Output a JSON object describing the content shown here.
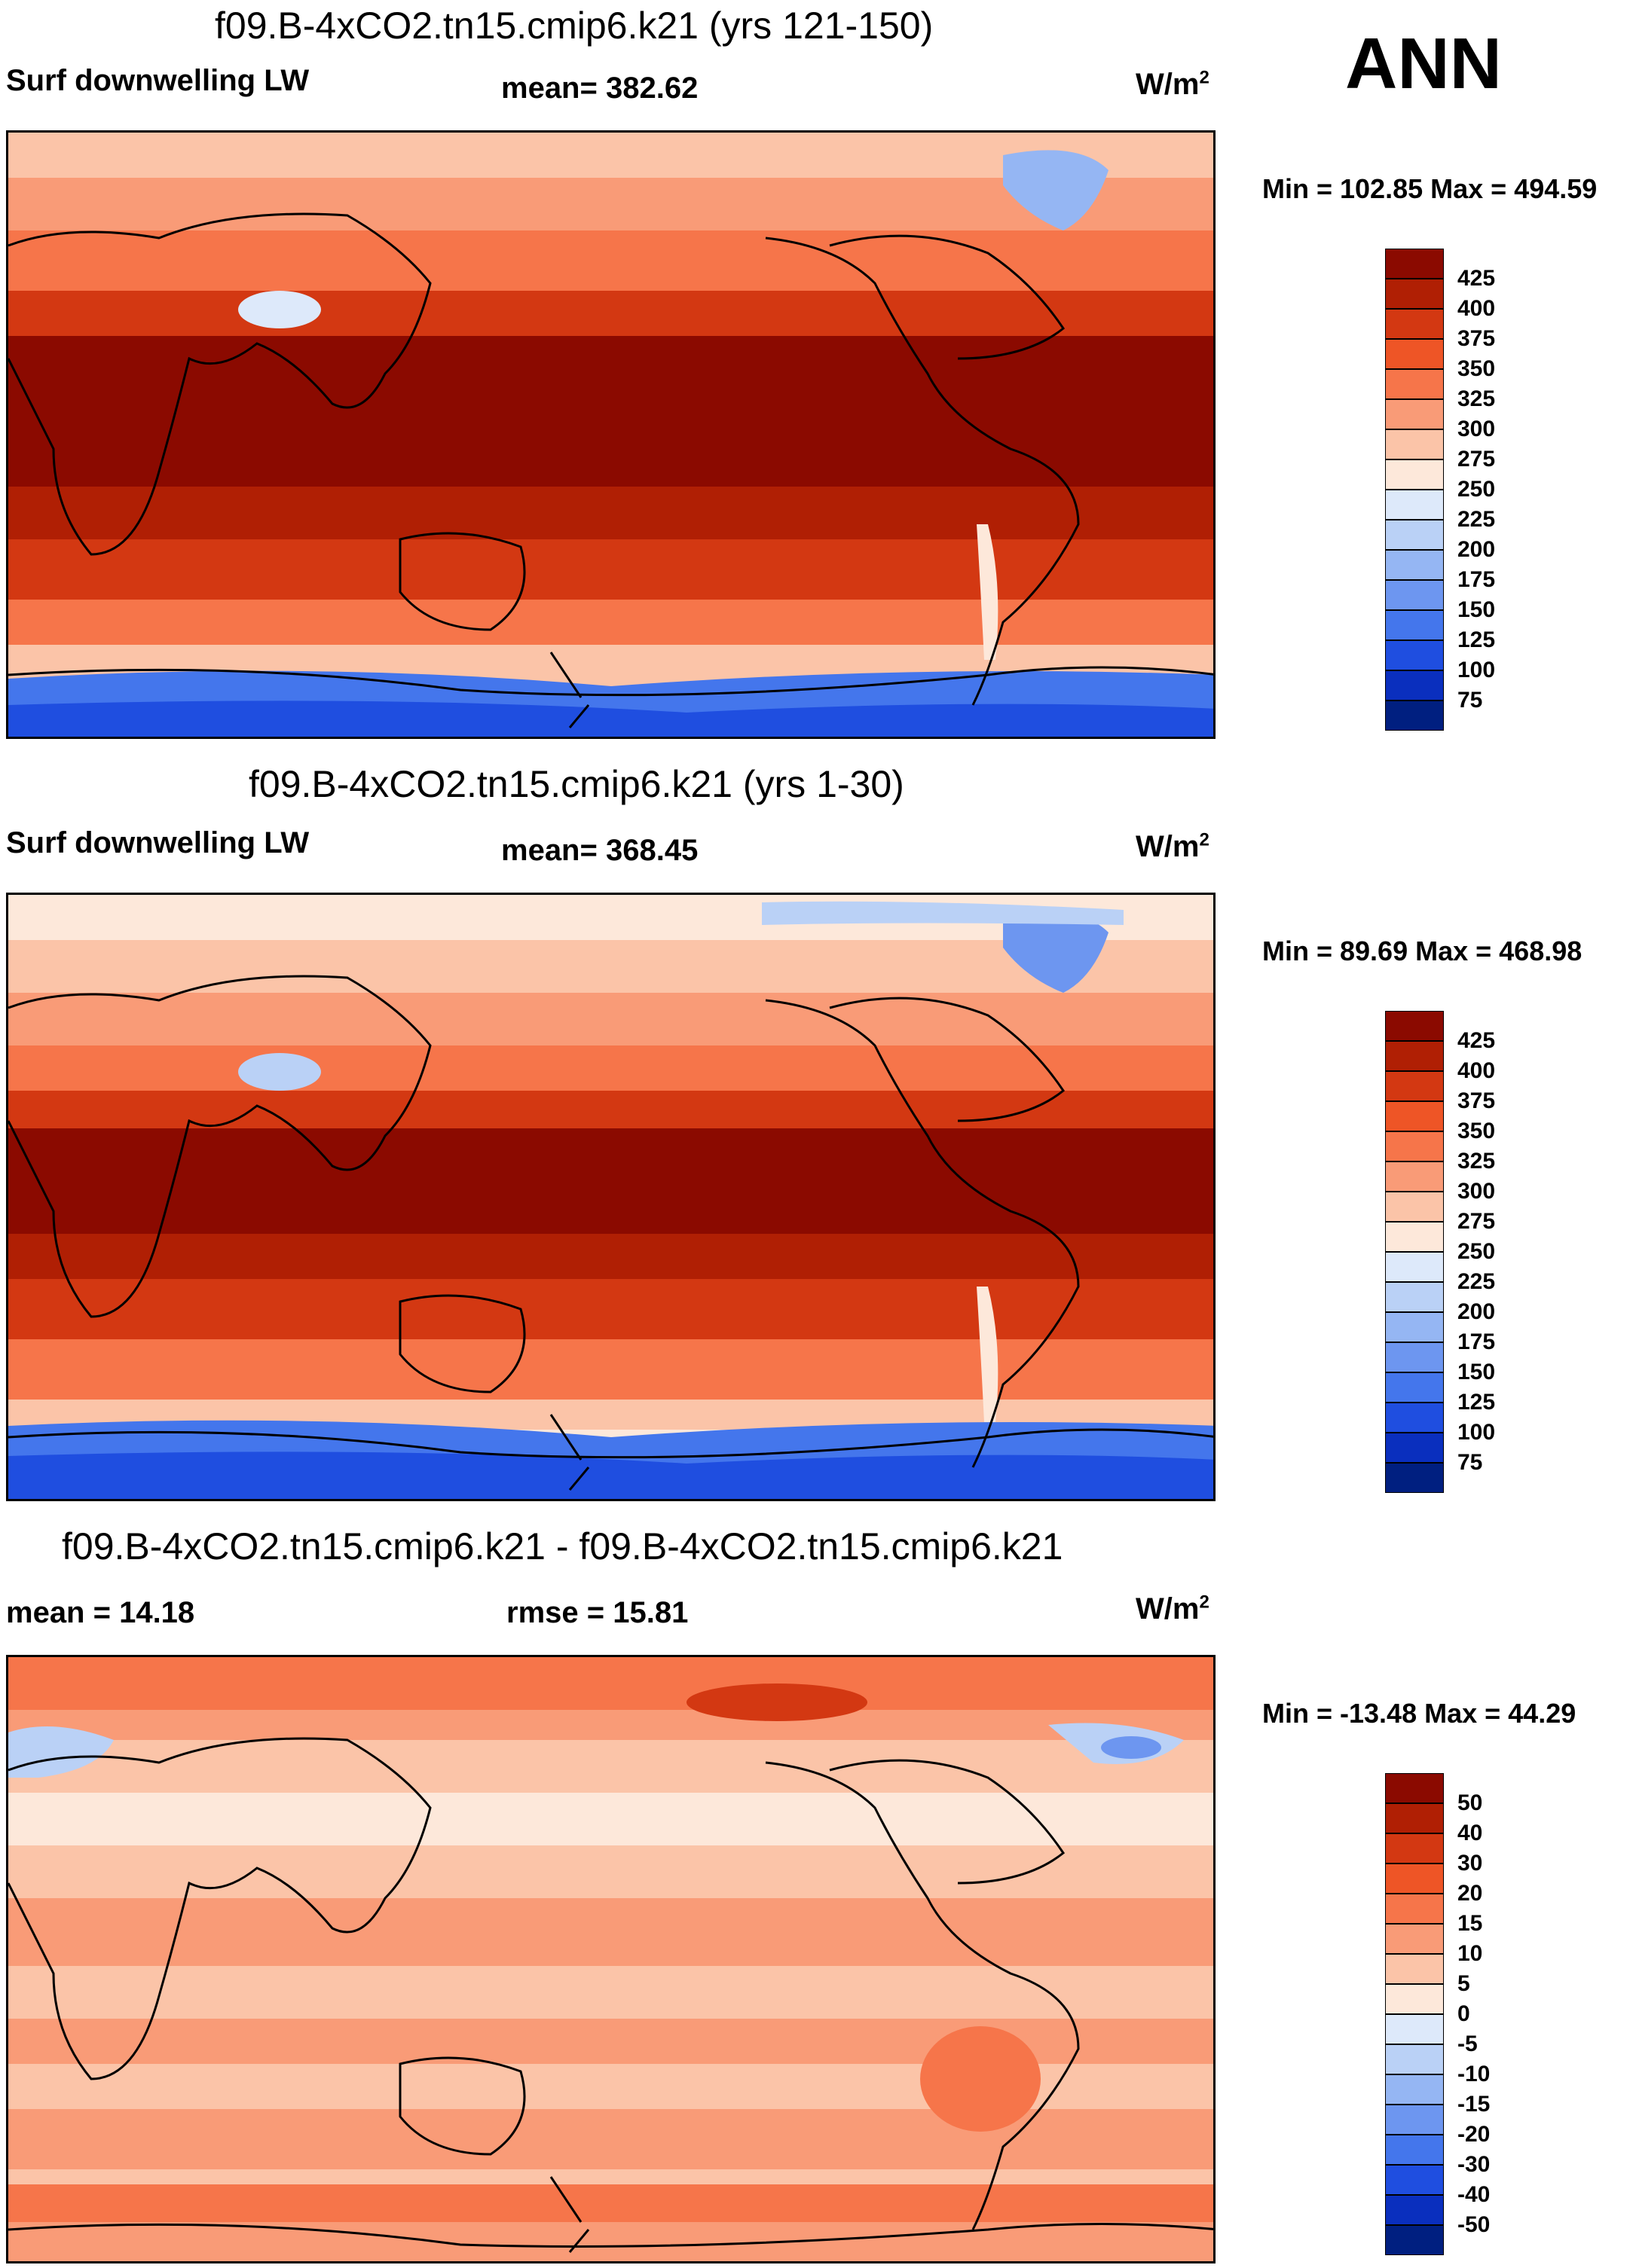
{
  "season": "ANN",
  "units": "W/m",
  "units_exp": "2",
  "panels": [
    {
      "title": "f09.B-4xCO2.tn15.cmip6.k21 (yrs 121-150)",
      "left": "Surf downwelling LW",
      "center": "mean= 382.62",
      "minmax": "Min = 102.85 Max = 494.59",
      "kind": "abs"
    },
    {
      "title": "f09.B-4xCO2.tn15.cmip6.k21 (yrs 1-30)",
      "left": "Surf downwelling LW",
      "center": "mean= 368.45",
      "minmax": "Min =  89.69 Max = 468.98",
      "kind": "abs"
    },
    {
      "title": "f09.B-4xCO2.tn15.cmip6.k21 - f09.B-4xCO2.tn15.cmip6.k21",
      "left": "mean =  14.18",
      "center": "rmse =  15.81",
      "minmax": "Min = -13.48 Max =  44.29",
      "kind": "diff"
    }
  ],
  "colorbars": {
    "abs": {
      "labels": [
        "425",
        "400",
        "375",
        "350",
        "325",
        "300",
        "275",
        "250",
        "225",
        "200",
        "175",
        "150",
        "125",
        "100",
        "75"
      ],
      "colors": [
        "#8b0a00",
        "#b01f04",
        "#d33812",
        "#ee5526",
        "#f6754a",
        "#f99b77",
        "#fbc4a8",
        "#fde8da",
        "#dde9fa",
        "#bad1f6",
        "#95b6f3",
        "#6d96f0",
        "#4476ec",
        "#1f4ee0",
        "#0a2fbe",
        "#001f80"
      ]
    },
    "diff": {
      "labels": [
        "50",
        "40",
        "30",
        "20",
        "15",
        "10",
        "5",
        "0",
        "-5",
        "-10",
        "-15",
        "-20",
        "-30",
        "-40",
        "-50"
      ],
      "colors": [
        "#8b0a00",
        "#b01f04",
        "#d33812",
        "#ee5526",
        "#f6754a",
        "#f99b77",
        "#fbc4a8",
        "#fde8da",
        "#dde9fa",
        "#bad1f6",
        "#95b6f3",
        "#6d96f0",
        "#4476ec",
        "#1f4ee0",
        "#0a2fbe",
        "#001f80"
      ]
    }
  }
}
